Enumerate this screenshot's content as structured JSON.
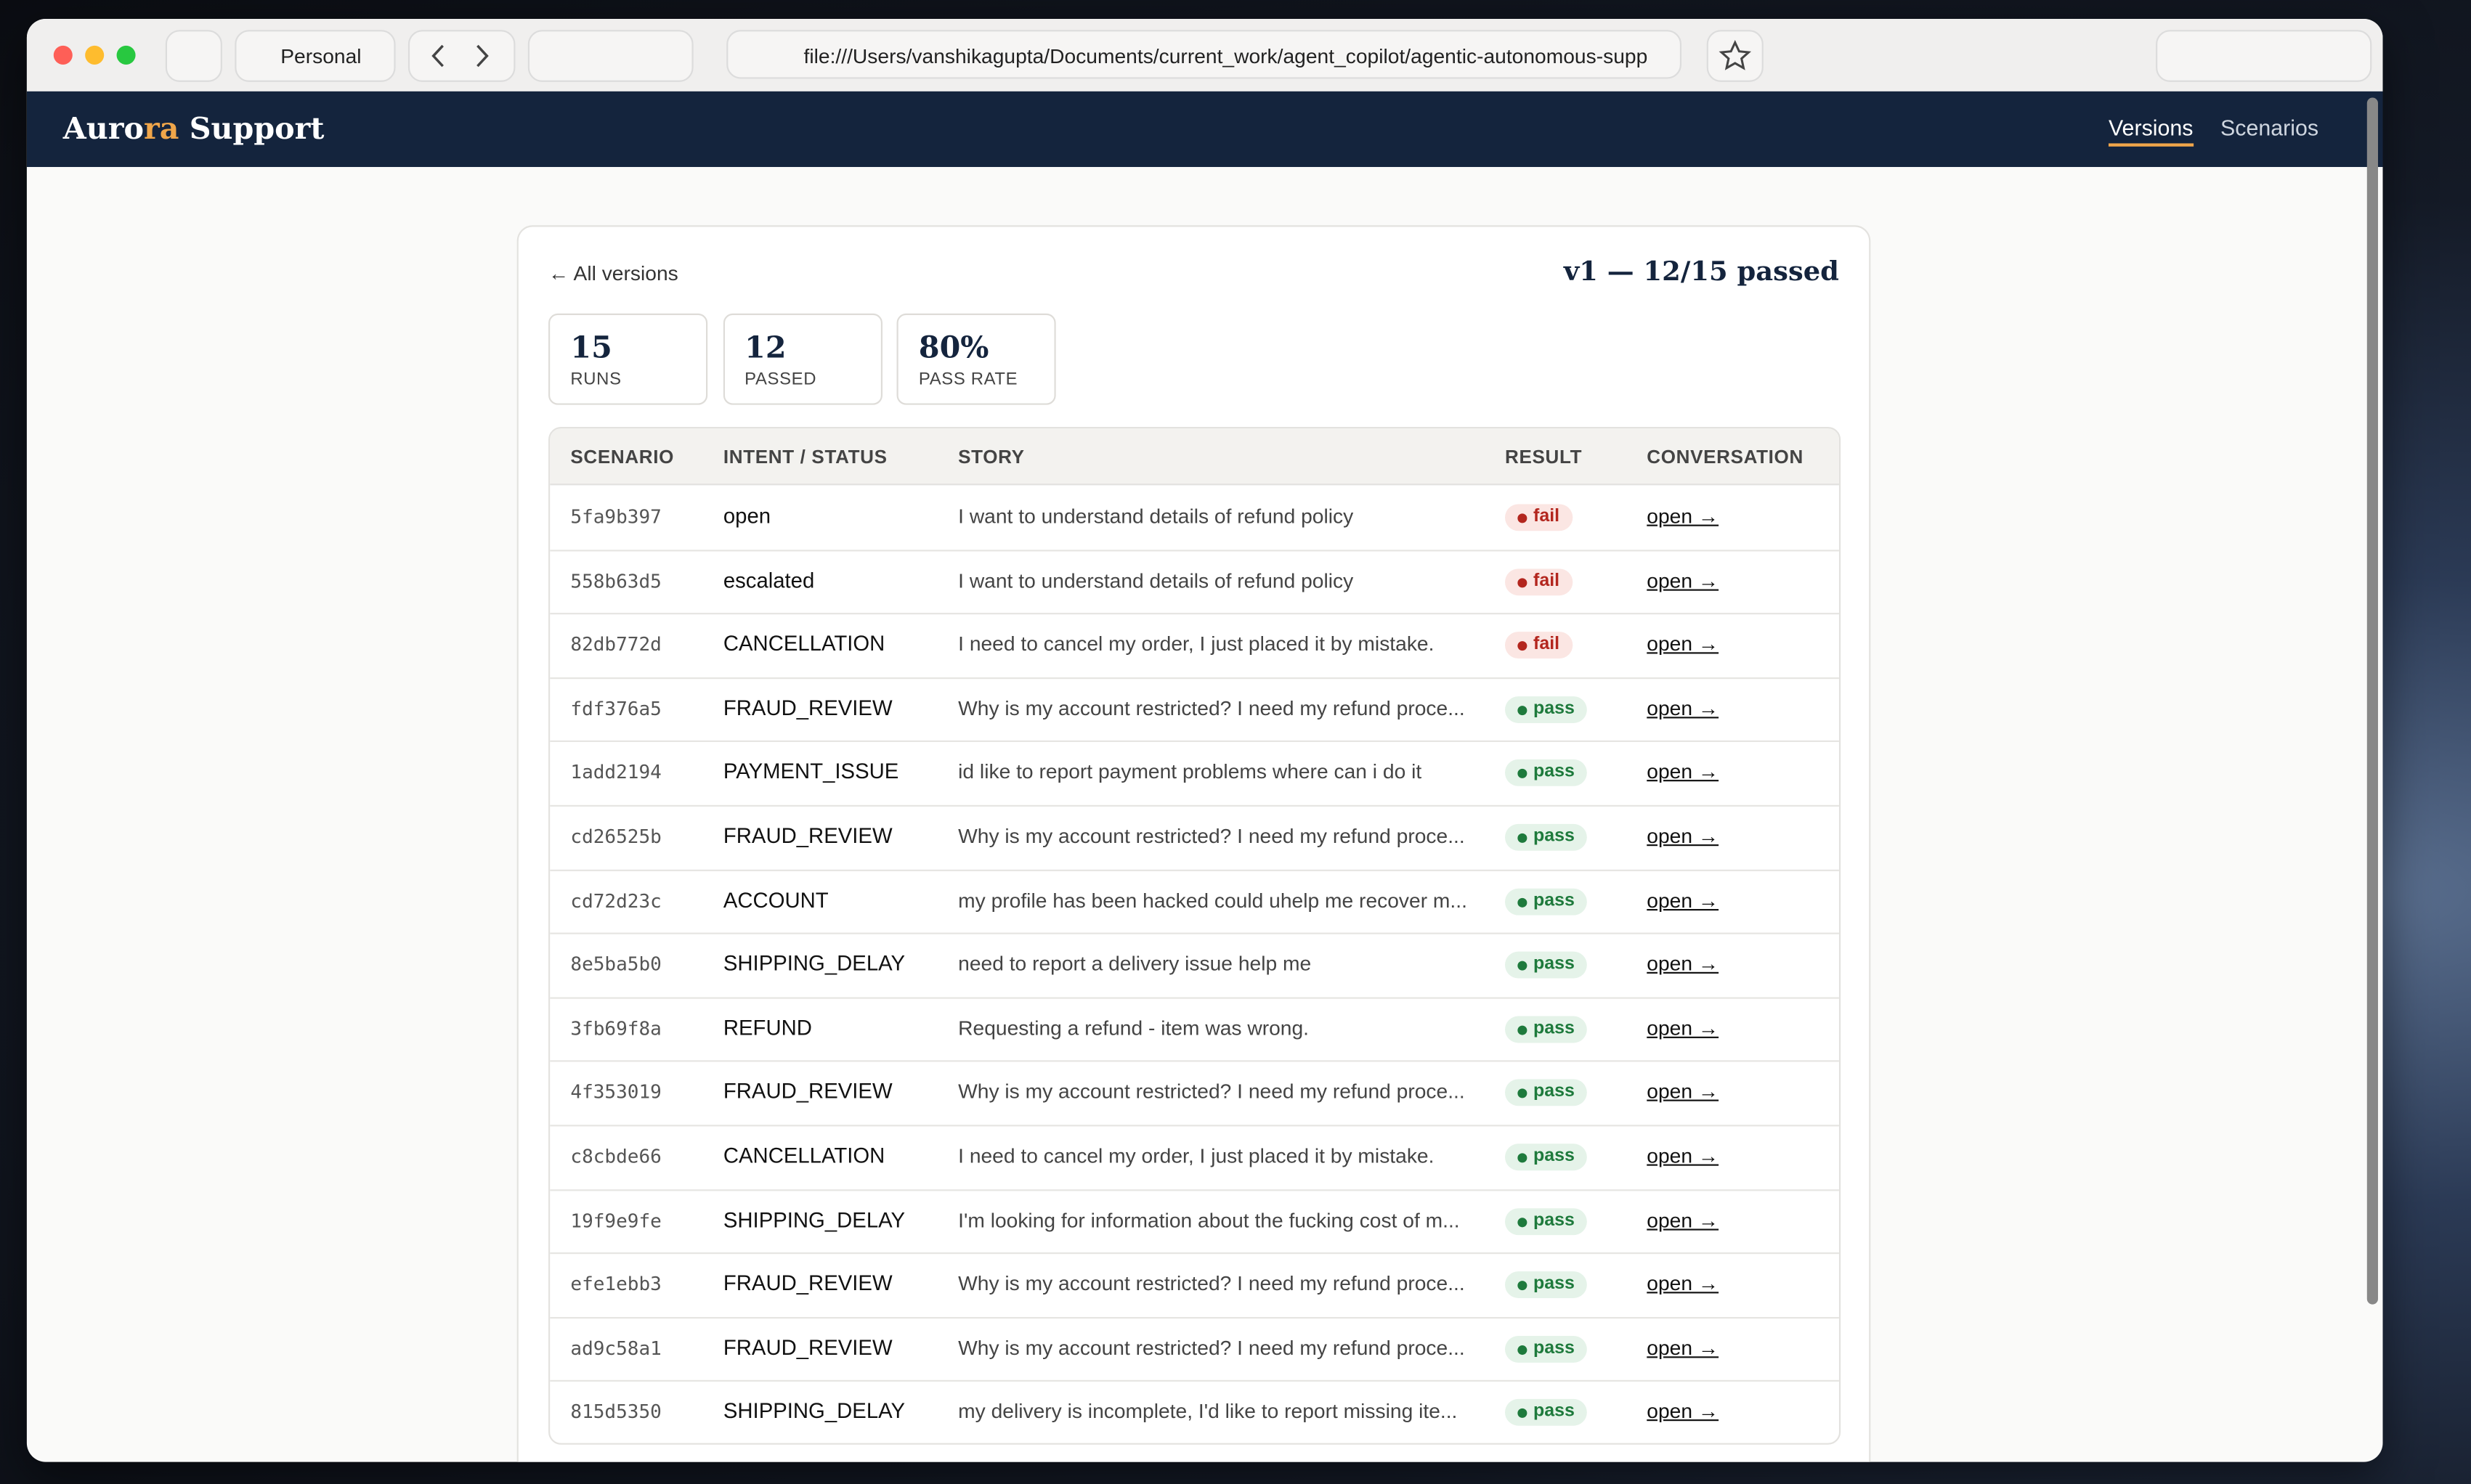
{
  "browser": {
    "profile": "Personal",
    "url": "file:///Users/vanshikagupta/Documents/current_work/agent_copilot/agentic-autonomous-supp"
  },
  "app": {
    "brand": [
      "Auro",
      "ra",
      " Support"
    ],
    "nav": [
      "Versions",
      "Scenarios"
    ],
    "back": "← All versions",
    "heading": "v1 — 12/15 passed",
    "stats": [
      {
        "value": "15",
        "label": "RUNS"
      },
      {
        "value": "12",
        "label": "PASSED"
      },
      {
        "value": "80%",
        "label": "PASS RATE"
      }
    ],
    "table": {
      "headers": [
        "SCENARIO",
        "INTENT / STATUS",
        "STORY",
        "RESULT",
        "CONVERSATION"
      ],
      "rows": [
        [
          "5fa9b397",
          "open",
          "I want to understand details of refund policy",
          "fail",
          "open →"
        ],
        [
          "558b63d5",
          "escalated",
          "I want to understand details of refund policy",
          "fail",
          "open →"
        ],
        [
          "82db772d",
          "CANCELLATION",
          "I need to cancel my order, I just placed it by mistake.",
          "fail",
          "open →"
        ],
        [
          "fdf376a5",
          "FRAUD_REVIEW",
          "Why is my account restricted? I need my refund proce...",
          "pass",
          "open →"
        ],
        [
          "1add2194",
          "PAYMENT_ISSUE",
          "id like to report payment problems where can i do it",
          "pass",
          "open →"
        ],
        [
          "cd26525b",
          "FRAUD_REVIEW",
          "Why is my account restricted? I need my refund proce...",
          "pass",
          "open →"
        ],
        [
          "cd72d23c",
          "ACCOUNT",
          "my profile has been hacked could uhelp me recover m...",
          "pass",
          "open →"
        ],
        [
          "8e5ba5b0",
          "SHIPPING_DELAY",
          "need to report a delivery issue help me",
          "pass",
          "open →"
        ],
        [
          "3fb69f8a",
          "REFUND",
          "Requesting a refund - item was wrong.",
          "pass",
          "open →"
        ],
        [
          "4f353019",
          "FRAUD_REVIEW",
          "Why is my account restricted? I need my refund proce...",
          "pass",
          "open →"
        ],
        [
          "c8cbde66",
          "CANCELLATION",
          "I need to cancel my order, I just placed it by mistake.",
          "pass",
          "open →"
        ],
        [
          "19f9e9fe",
          "SHIPPING_DELAY",
          "I'm looking for information about the fucking cost of m...",
          "pass",
          "open →"
        ],
        [
          "efe1ebb3",
          "FRAUD_REVIEW",
          "Why is my account restricted? I need my refund proce...",
          "pass",
          "open →"
        ],
        [
          "ad9c58a1",
          "FRAUD_REVIEW",
          "Why is my account restricted? I need my refund proce...",
          "pass",
          "open →"
        ],
        [
          "815d5350",
          "SHIPPING_DELAY",
          "my delivery is incomplete, I'd like to report missing ite...",
          "pass",
          "open →"
        ]
      ]
    }
  }
}
